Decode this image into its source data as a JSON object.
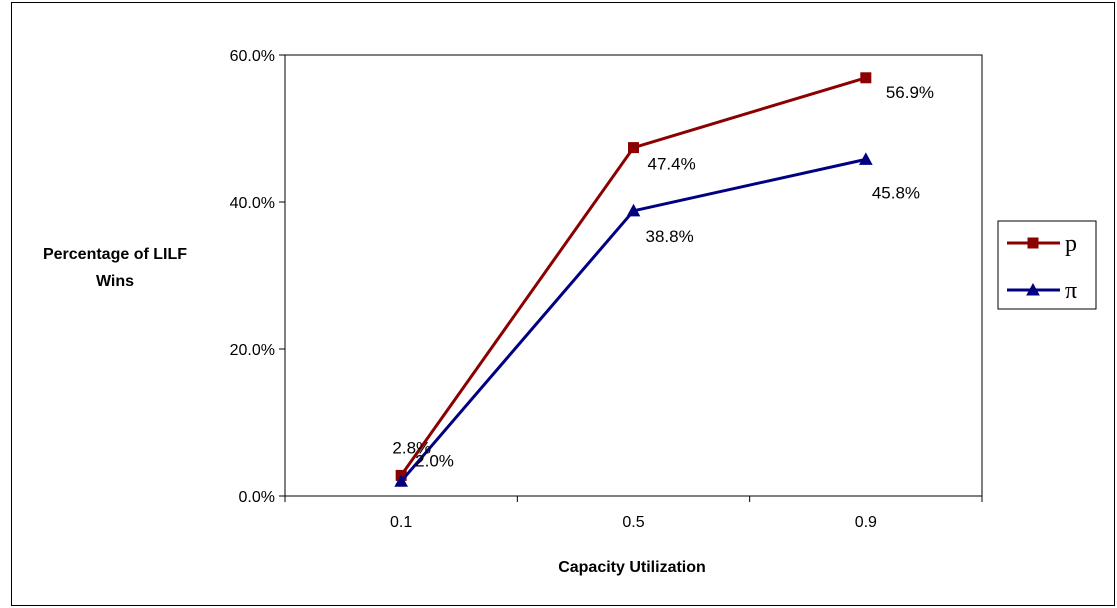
{
  "chart_data": {
    "type": "line",
    "categories": [
      "0.1",
      "0.5",
      "0.9"
    ],
    "series": [
      {
        "name": "p",
        "values": [
          2.8,
          47.4,
          56.9
        ],
        "labels": [
          "2.8%",
          "47.4%",
          "56.9%"
        ],
        "color": "#8B0000",
        "marker": "square"
      },
      {
        "name": "π",
        "values": [
          2.0,
          38.8,
          45.8
        ],
        "labels": [
          "2.0%",
          "38.8%",
          "45.8%"
        ],
        "color": "#000080",
        "marker": "triangle"
      }
    ],
    "yticks": [
      "0.0%",
      "20.0%",
      "40.0%",
      "60.0%"
    ],
    "ylim": [
      0,
      60
    ],
    "ylabel_lines": [
      "Percentage of LILF",
      "Wins"
    ],
    "xlabel": "Capacity Utilization",
    "legend_position": "right",
    "grid": false
  }
}
